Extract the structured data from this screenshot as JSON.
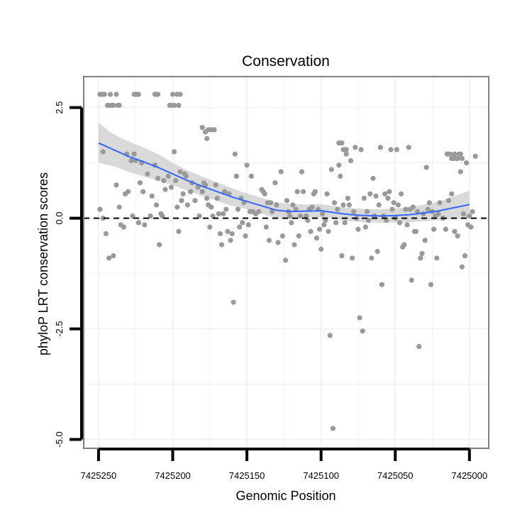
{
  "chart_data": {
    "type": "scatter",
    "title": "Conservation",
    "xlabel": "Genomic Position",
    "ylabel": "phyloP LRT conservation scores",
    "xlim": [
      7425260,
      7424987
    ],
    "x_reversed": true,
    "ylim": [
      -5.2,
      3.2
    ],
    "x_ticks": [
      7425250,
      7425200,
      7425150,
      7425100,
      7425050,
      7425000
    ],
    "x_tick_labels": [
      "7425250",
      "7425200",
      "7425150",
      "7425100",
      "7425050",
      "7425000"
    ],
    "y_ticks": [
      2.5,
      0.0,
      -2.5,
      -5.0
    ],
    "y_tick_labels": [
      "2.5",
      "0.0",
      "-2.5",
      "-5.0"
    ],
    "reference_line": {
      "y": 0,
      "style": "dashed"
    },
    "grid": true,
    "colors": {
      "points": "#999999",
      "smooth": "#3366ff",
      "band": "#cccccc",
      "panel_border": "#7f7f7f",
      "grid": "#f2f2f2"
    },
    "series": [
      {
        "name": "scores",
        "kind": "scatter",
        "points": [
          [
            7425249,
            2.8
          ],
          [
            7425248,
            2.8
          ],
          [
            7425247,
            2.8
          ],
          [
            7425246,
            2.8
          ],
          [
            7425244,
            2.55
          ],
          [
            7425243,
            2.55
          ],
          [
            7425242,
            2.8
          ],
          [
            7425241,
            2.55
          ],
          [
            7425240,
            2.55
          ],
          [
            7425238,
            2.8
          ],
          [
            7425237,
            2.55
          ],
          [
            7425236,
            2.55
          ],
          [
            7425226,
            2.8
          ],
          [
            7425225,
            2.8
          ],
          [
            7425224,
            2.8
          ],
          [
            7425223,
            2.8
          ],
          [
            7425212,
            2.8
          ],
          [
            7425211,
            2.8
          ],
          [
            7425210,
            2.8
          ],
          [
            7425202,
            2.55
          ],
          [
            7425201,
            2.55
          ],
          [
            7425200,
            2.8
          ],
          [
            7425199,
            2.55
          ],
          [
            7425197,
            2.8
          ],
          [
            7425196,
            2.55
          ],
          [
            7425195,
            2.8
          ],
          [
            7425180,
            2.05
          ],
          [
            7425178,
            1.95
          ],
          [
            7425176,
            2.0
          ],
          [
            7425174,
            2.0
          ],
          [
            7425172,
            2.0
          ],
          [
            7425177,
            1.8
          ],
          [
            7425088,
            1.7
          ],
          [
            7425087,
            1.7
          ],
          [
            7425086,
            1.7
          ],
          [
            7425085,
            1.55
          ],
          [
            7425084,
            1.55
          ],
          [
            7425083,
            1.55
          ],
          [
            7425015,
            1.45
          ],
          [
            7425014,
            1.45
          ],
          [
            7425013,
            1.45
          ],
          [
            7425012,
            1.35
          ],
          [
            7425011,
            1.35
          ],
          [
            7425010,
            1.45
          ],
          [
            7425009,
            1.35
          ],
          [
            7425008,
            1.35
          ],
          [
            7425007,
            1.45
          ],
          [
            7425006,
            1.45
          ],
          [
            7425005,
            1.35
          ],
          [
            7425249,
            0.2
          ],
          [
            7425247,
            0.0
          ],
          [
            7425245,
            -0.35
          ],
          [
            7425243,
            -0.9
          ],
          [
            7425240,
            -0.85
          ],
          [
            7425247,
            1.5
          ],
          [
            7425238,
            0.75
          ],
          [
            7425236,
            0.25
          ],
          [
            7425235,
            -0.15
          ],
          [
            7425233,
            -0.2
          ],
          [
            7425232,
            0.55
          ],
          [
            7425231,
            1.45
          ],
          [
            7425230,
            0.6
          ],
          [
            7425228,
            1.3
          ],
          [
            7425227,
            0.05
          ],
          [
            7425226,
            1.45
          ],
          [
            7425225,
            1.3
          ],
          [
            7425223,
            -0.1
          ],
          [
            7425222,
            0.8
          ],
          [
            7425221,
            1.25
          ],
          [
            7425220,
            0.6
          ],
          [
            7425219,
            -0.15
          ],
          [
            7425217,
            1.0
          ],
          [
            7425215,
            0.05
          ],
          [
            7425214,
            0.5
          ],
          [
            7425212,
            1.2
          ],
          [
            7425211,
            0.3
          ],
          [
            7425210,
            0.9
          ],
          [
            7425209,
            -0.6
          ],
          [
            7425208,
            0.1
          ],
          [
            7425207,
            0.05
          ],
          [
            7425206,
            0.85
          ],
          [
            7425205,
            0.65
          ],
          [
            7425203,
            0.95
          ],
          [
            7425201,
            0.7
          ],
          [
            7425199,
            1.5
          ],
          [
            7425198,
            0.85
          ],
          [
            7425197,
            0.25
          ],
          [
            7425196,
            -0.3
          ],
          [
            7425195,
            1.05
          ],
          [
            7425194,
            0.4
          ],
          [
            7425193,
            0.55
          ],
          [
            7425192,
            1.0
          ],
          [
            7425191,
            0.95
          ],
          [
            7425190,
            0.3
          ],
          [
            7425188,
            0.6
          ],
          [
            7425187,
            0.8
          ],
          [
            7425185,
            0.4
          ],
          [
            7425183,
            0.7
          ],
          [
            7425182,
            0.05
          ],
          [
            7425180,
            0.6
          ],
          [
            7425179,
            0.8
          ],
          [
            7425178,
            0.75
          ],
          [
            7425177,
            0.45
          ],
          [
            7425176,
            0.3
          ],
          [
            7425175,
            -0.2
          ],
          [
            7425174,
            0.25
          ],
          [
            7425173,
            0.05
          ],
          [
            7425171,
            0.75
          ],
          [
            7425170,
            0.45
          ],
          [
            7425169,
            0.1
          ],
          [
            7425168,
            -0.35
          ],
          [
            7425167,
            -0.6
          ],
          [
            7425166,
            0.1
          ],
          [
            7425165,
            0.6
          ],
          [
            7425164,
            0.2
          ],
          [
            7425163,
            -0.3
          ],
          [
            7425162,
            0.55
          ],
          [
            7425161,
            -0.5
          ],
          [
            7425160,
            -0.35
          ],
          [
            7425159,
            -1.9
          ],
          [
            7425158,
            1.45
          ],
          [
            7425157,
            0.95
          ],
          [
            7425156,
            0.2
          ],
          [
            7425155,
            -0.2
          ],
          [
            7425154,
            0.45
          ],
          [
            7425153,
            -0.1
          ],
          [
            7425152,
            0.35
          ],
          [
            7425151,
            -0.4
          ],
          [
            7425150,
            1.2
          ],
          [
            7425149,
            -0.15
          ],
          [
            7425148,
            0.15
          ],
          [
            7425147,
            0.95
          ],
          [
            7425146,
            0.15
          ],
          [
            7425144,
            0.1
          ],
          [
            7425142,
            0.15
          ],
          [
            7425140,
            0.65
          ],
          [
            7425139,
            0.6
          ],
          [
            7425138,
            0.55
          ],
          [
            7425137,
            -0.2
          ],
          [
            7425136,
            0.35
          ],
          [
            7425135,
            -0.5
          ],
          [
            7425134,
            0.35
          ],
          [
            7425133,
            0.15
          ],
          [
            7425131,
            0.8
          ],
          [
            7425130,
            0.3
          ],
          [
            7425129,
            -0.55
          ],
          [
            7425127,
            1.05
          ],
          [
            7425126,
            -0.4
          ],
          [
            7425124,
            -0.95
          ],
          [
            7425123,
            0.4
          ],
          [
            7425122,
            0.15
          ],
          [
            7425121,
            0.05
          ],
          [
            7425120,
            -0.1
          ],
          [
            7425119,
            0.3
          ],
          [
            7425118,
            -0.6
          ],
          [
            7425117,
            0.2
          ],
          [
            7425116,
            0.6
          ],
          [
            7425115,
            -0.4
          ],
          [
            7425114,
            0.05
          ],
          [
            7425113,
            1.05
          ],
          [
            7425112,
            0.6
          ],
          [
            7425110,
            0.05
          ],
          [
            7425109,
            -0.05
          ],
          [
            7425108,
            0.2
          ],
          [
            7425107,
            -0.3
          ],
          [
            7425106,
            0.25
          ],
          [
            7425105,
            0.55
          ],
          [
            7425104,
            0.6
          ],
          [
            7425103,
            -0.45
          ],
          [
            7425102,
            0.2
          ],
          [
            7425101,
            -0.25
          ],
          [
            7425100,
            -0.7
          ],
          [
            7425099,
            0.1
          ],
          [
            7425098,
            -0.15
          ],
          [
            7425097,
            -0.05
          ],
          [
            7425096,
            0.55
          ],
          [
            7425095,
            -0.3
          ],
          [
            7425094,
            -2.65
          ],
          [
            7425093,
            1.1
          ],
          [
            7425092,
            -4.75
          ],
          [
            7425091,
            0.35
          ],
          [
            7425090,
            -0.1
          ],
          [
            7425089,
            0.2
          ],
          [
            7425088,
            1.2
          ],
          [
            7425087,
            0.95
          ],
          [
            7425086,
            -0.85
          ],
          [
            7425085,
            0.3
          ],
          [
            7425084,
            -0.1
          ],
          [
            7425083,
            1.45
          ],
          [
            7425082,
            0.45
          ],
          [
            7425081,
            0.3
          ],
          [
            7425080,
            1.3
          ],
          [
            7425079,
            -0.9
          ],
          [
            7425078,
            0.15
          ],
          [
            7425077,
            1.6
          ],
          [
            7425076,
            0.0
          ],
          [
            7425075,
            -0.25
          ],
          [
            7425074,
            -2.25
          ],
          [
            7425073,
            1.55
          ],
          [
            7425072,
            -2.55
          ],
          [
            7425071,
            0.45
          ],
          [
            7425070,
            -0.2
          ],
          [
            7425069,
            0.15
          ],
          [
            7425068,
            -0.05
          ],
          [
            7425067,
            0.55
          ],
          [
            7425066,
            -0.9
          ],
          [
            7425065,
            0.9
          ],
          [
            7425064,
            0.05
          ],
          [
            7425063,
            0.5
          ],
          [
            7425062,
            -0.75
          ],
          [
            7425061,
            0.3
          ],
          [
            7425060,
            1.6
          ],
          [
            7425059,
            -1.5
          ],
          [
            7425058,
            0.05
          ],
          [
            7425057,
            0.55
          ],
          [
            7425056,
            -0.05
          ],
          [
            7425055,
            0.45
          ],
          [
            7425054,
            0.6
          ],
          [
            7425053,
            1.55
          ],
          [
            7425052,
            0.2
          ],
          [
            7425051,
            0.35
          ],
          [
            7425050,
            0.0
          ],
          [
            7425049,
            1.55
          ],
          [
            7425048,
            0.3
          ],
          [
            7425047,
            -0.1
          ],
          [
            7425046,
            0.55
          ],
          [
            7425045,
            -0.65
          ],
          [
            7425044,
            -0.6
          ],
          [
            7425043,
            0.2
          ],
          [
            7425042,
            -0.15
          ],
          [
            7425041,
            1.6
          ],
          [
            7425040,
            0.2
          ],
          [
            7425039,
            -1.4
          ],
          [
            7425038,
            0.25
          ],
          [
            7425037,
            -0.3
          ],
          [
            7425036,
            -0.3
          ],
          [
            7425035,
            0.15
          ],
          [
            7425034,
            -2.9
          ],
          [
            7425033,
            -0.9
          ],
          [
            7425032,
            -0.8
          ],
          [
            7425031,
            0.1
          ],
          [
            7425030,
            -0.5
          ],
          [
            7425029,
            1.15
          ],
          [
            7425028,
            0.2
          ],
          [
            7425027,
            0.35
          ],
          [
            7425026,
            -1.5
          ],
          [
            7425025,
            0.15
          ],
          [
            7425024,
            -0.25
          ],
          [
            7425023,
            0.05
          ],
          [
            7425022,
            -0.9
          ],
          [
            7425021,
            0.1
          ],
          [
            7425020,
            0.35
          ],
          [
            7425018,
            0.0
          ],
          [
            7425016,
            -0.25
          ],
          [
            7425014,
            0.4
          ],
          [
            7425012,
            0.55
          ],
          [
            7425010,
            -0.3
          ],
          [
            7425008,
            -0.4
          ],
          [
            7425006,
            1.05
          ],
          [
            7425005,
            -1.1
          ],
          [
            7425004,
            0.1
          ],
          [
            7425003,
            -0.85
          ],
          [
            7425002,
            1.25
          ],
          [
            7425001,
            -0.15
          ],
          [
            7425000,
            0.05
          ],
          [
            7424999,
            -0.2
          ],
          [
            7424998,
            0.15
          ],
          [
            7424996,
            1.4
          ]
        ]
      },
      {
        "name": "loess fit",
        "kind": "smooth",
        "x": [
          7425250,
          7425240,
          7425230,
          7425220,
          7425210,
          7425200,
          7425190,
          7425180,
          7425170,
          7425160,
          7425150,
          7425140,
          7425130,
          7425120,
          7425110,
          7425100,
          7425090,
          7425080,
          7425070,
          7425060,
          7425050,
          7425040,
          7425030,
          7425020,
          7425010,
          7425000
        ],
        "y": [
          1.7,
          1.55,
          1.4,
          1.28,
          1.15,
          1.0,
          0.85,
          0.72,
          0.6,
          0.48,
          0.38,
          0.28,
          0.18,
          0.15,
          0.16,
          0.17,
          0.12,
          0.08,
          0.06,
          0.05,
          0.06,
          0.08,
          0.12,
          0.17,
          0.24,
          0.31
        ],
        "band_lower": [
          1.25,
          1.18,
          1.05,
          0.95,
          0.85,
          0.75,
          0.62,
          0.5,
          0.39,
          0.28,
          0.2,
          0.1,
          0.0,
          -0.02,
          0.01,
          0.02,
          -0.02,
          -0.07,
          -0.09,
          -0.1,
          -0.1,
          -0.09,
          -0.07,
          -0.04,
          -0.02,
          0.0
        ],
        "band_upper": [
          2.15,
          1.9,
          1.74,
          1.6,
          1.45,
          1.25,
          1.08,
          0.94,
          0.81,
          0.68,
          0.56,
          0.46,
          0.36,
          0.32,
          0.31,
          0.32,
          0.27,
          0.23,
          0.21,
          0.2,
          0.22,
          0.25,
          0.31,
          0.38,
          0.5,
          0.62
        ]
      }
    ]
  }
}
